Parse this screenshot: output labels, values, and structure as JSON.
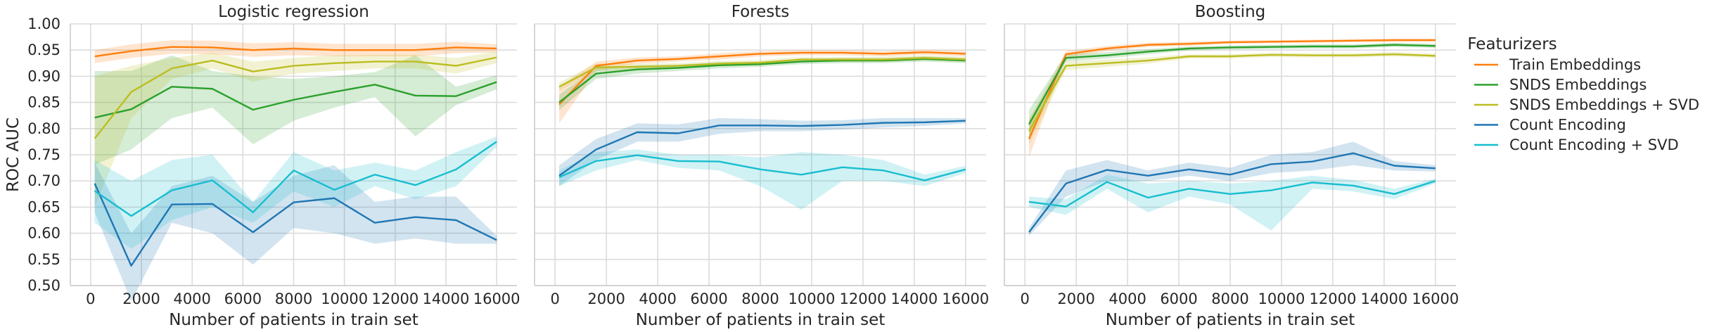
{
  "chart_data": [
    {
      "type": "line",
      "title": "Logistic regression",
      "xlabel": "Number of patients in train set",
      "ylabel": "ROC AUC",
      "xlim": [
        -800,
        16800
      ],
      "ylim": [
        0.5,
        1.0
      ],
      "x_ticks": [
        0,
        2000,
        4000,
        6000,
        8000,
        10000,
        12000,
        14000,
        16000
      ],
      "y_ticks": [
        0.5,
        0.55,
        0.6,
        0.65,
        0.7,
        0.75,
        0.8,
        0.85,
        0.9,
        0.95,
        1.0
      ],
      "grid": true,
      "x": [
        160,
        1600,
        3200,
        4800,
        6400,
        8000,
        9600,
        11200,
        12800,
        14400,
        16000
      ],
      "series": [
        {
          "name": "Train Embeddings",
          "color": "#ff7f0e",
          "values": [
            0.938,
            0.948,
            0.956,
            0.955,
            0.95,
            0.953,
            0.95,
            0.95,
            0.95,
            0.955,
            0.953
          ],
          "lower": [
            0.925,
            0.935,
            0.943,
            0.942,
            0.937,
            0.94,
            0.938,
            0.938,
            0.938,
            0.944,
            0.945
          ],
          "upper": [
            0.95,
            0.961,
            0.969,
            0.968,
            0.963,
            0.965,
            0.962,
            0.962,
            0.962,
            0.966,
            0.961
          ]
        },
        {
          "name": "SNDS Embeddings",
          "color": "#2ca02c",
          "values": [
            0.821,
            0.837,
            0.88,
            0.876,
            0.836,
            0.855,
            0.87,
            0.884,
            0.863,
            0.862,
            0.889
          ],
          "lower": [
            0.731,
            0.76,
            0.82,
            0.84,
            0.77,
            0.815,
            0.84,
            0.86,
            0.785,
            0.845,
            0.875
          ],
          "upper": [
            0.91,
            0.91,
            0.94,
            0.91,
            0.9,
            0.895,
            0.9,
            0.908,
            0.94,
            0.88,
            0.902
          ]
        },
        {
          "name": "SNDS Embeddings + SVD",
          "color": "#bcbd22",
          "values": [
            0.781,
            0.87,
            0.915,
            0.93,
            0.909,
            0.92,
            0.925,
            0.928,
            0.928,
            0.92,
            0.936
          ],
          "lower": [
            0.65,
            0.82,
            0.895,
            0.915,
            0.89,
            0.905,
            0.91,
            0.915,
            0.915,
            0.905,
            0.925
          ],
          "upper": [
            0.9,
            0.92,
            0.935,
            0.945,
            0.928,
            0.935,
            0.94,
            0.941,
            0.941,
            0.935,
            0.947
          ]
        },
        {
          "name": "Count Encoding",
          "color": "#1f77b4",
          "values": [
            0.695,
            0.538,
            0.655,
            0.656,
            0.602,
            0.659,
            0.667,
            0.62,
            0.631,
            0.625,
            0.587
          ],
          "lower": [
            0.64,
            0.47,
            0.62,
            0.6,
            0.54,
            0.61,
            0.6,
            0.58,
            0.59,
            0.58,
            0.58
          ],
          "upper": [
            0.735,
            0.6,
            0.69,
            0.71,
            0.66,
            0.71,
            0.73,
            0.66,
            0.67,
            0.67,
            0.595
          ]
        },
        {
          "name": "Count Encoding + SVD",
          "color": "#17becf",
          "values": [
            0.681,
            0.633,
            0.682,
            0.701,
            0.64,
            0.72,
            0.683,
            0.712,
            0.692,
            0.722,
            0.775
          ],
          "lower": [
            0.62,
            0.57,
            0.625,
            0.65,
            0.62,
            0.68,
            0.65,
            0.69,
            0.665,
            0.69,
            0.765
          ],
          "upper": [
            0.74,
            0.7,
            0.74,
            0.75,
            0.66,
            0.755,
            0.72,
            0.735,
            0.72,
            0.755,
            0.785
          ]
        }
      ]
    },
    {
      "type": "line",
      "title": "Forests",
      "xlabel": "Number of patients in train set",
      "xlim": [
        -800,
        16800
      ],
      "ylim": [
        0.5,
        1.0
      ],
      "x_ticks": [
        0,
        2000,
        4000,
        6000,
        8000,
        10000,
        12000,
        14000,
        16000
      ],
      "grid": true,
      "x": [
        160,
        1600,
        3200,
        4800,
        6400,
        8000,
        9600,
        11200,
        12800,
        14400,
        16000
      ],
      "series": [
        {
          "name": "Train Embeddings",
          "color": "#ff7f0e",
          "values": [
            0.846,
            0.92,
            0.93,
            0.933,
            0.938,
            0.943,
            0.945,
            0.945,
            0.943,
            0.946,
            0.943
          ],
          "lower": [
            0.81,
            0.91,
            0.924,
            0.928,
            0.932,
            0.938,
            0.94,
            0.94,
            0.938,
            0.941,
            0.938
          ],
          "upper": [
            0.88,
            0.928,
            0.936,
            0.938,
            0.944,
            0.948,
            0.95,
            0.95,
            0.948,
            0.951,
            0.948
          ]
        },
        {
          "name": "SNDS Embeddings",
          "color": "#2ca02c",
          "values": [
            0.85,
            0.905,
            0.913,
            0.916,
            0.921,
            0.923,
            0.928,
            0.93,
            0.93,
            0.933,
            0.93
          ],
          "lower": [
            0.835,
            0.895,
            0.905,
            0.91,
            0.915,
            0.918,
            0.923,
            0.925,
            0.925,
            0.928,
            0.925
          ],
          "upper": [
            0.865,
            0.915,
            0.921,
            0.922,
            0.927,
            0.928,
            0.933,
            0.935,
            0.935,
            0.938,
            0.935
          ]
        },
        {
          "name": "SNDS Embeddings + SVD",
          "color": "#bcbd22",
          "values": [
            0.88,
            0.917,
            0.918,
            0.92,
            0.924,
            0.926,
            0.932,
            0.932,
            0.932,
            0.935,
            0.932
          ],
          "lower": [
            0.872,
            0.91,
            0.912,
            0.915,
            0.919,
            0.921,
            0.927,
            0.927,
            0.927,
            0.93,
            0.927
          ],
          "upper": [
            0.888,
            0.924,
            0.924,
            0.925,
            0.929,
            0.931,
            0.937,
            0.937,
            0.937,
            0.94,
            0.937
          ]
        },
        {
          "name": "Count Encoding",
          "color": "#1f77b4",
          "values": [
            0.71,
            0.76,
            0.793,
            0.791,
            0.806,
            0.806,
            0.805,
            0.807,
            0.811,
            0.812,
            0.815
          ],
          "lower": [
            0.69,
            0.74,
            0.775,
            0.775,
            0.79,
            0.795,
            0.795,
            0.798,
            0.802,
            0.805,
            0.81
          ],
          "upper": [
            0.73,
            0.78,
            0.81,
            0.808,
            0.82,
            0.818,
            0.815,
            0.816,
            0.82,
            0.82,
            0.82
          ]
        },
        {
          "name": "Count Encoding + SVD",
          "color": "#17becf",
          "values": [
            0.707,
            0.738,
            0.749,
            0.738,
            0.737,
            0.722,
            0.712,
            0.726,
            0.72,
            0.701,
            0.722
          ],
          "lower": [
            0.69,
            0.72,
            0.74,
            0.725,
            0.72,
            0.69,
            0.645,
            0.7,
            0.7,
            0.69,
            0.715
          ],
          "upper": [
            0.72,
            0.755,
            0.76,
            0.75,
            0.75,
            0.745,
            0.755,
            0.75,
            0.74,
            0.712,
            0.729
          ]
        }
      ]
    },
    {
      "type": "line",
      "title": "Boosting",
      "xlabel": "Number of patients in train set",
      "xlim": [
        -800,
        16800
      ],
      "ylim": [
        0.5,
        1.0
      ],
      "x_ticks": [
        0,
        2000,
        4000,
        6000,
        8000,
        10000,
        12000,
        14000,
        16000
      ],
      "grid": true,
      "x": [
        160,
        1600,
        3200,
        4800,
        6400,
        8000,
        9600,
        11200,
        12800,
        14400,
        16000
      ],
      "series": [
        {
          "name": "Train Embeddings",
          "color": "#ff7f0e",
          "values": [
            0.78,
            0.942,
            0.953,
            0.96,
            0.962,
            0.965,
            0.966,
            0.967,
            0.968,
            0.969,
            0.969
          ],
          "lower": [
            0.745,
            0.936,
            0.948,
            0.956,
            0.958,
            0.962,
            0.963,
            0.964,
            0.965,
            0.966,
            0.966
          ],
          "upper": [
            0.815,
            0.948,
            0.958,
            0.964,
            0.966,
            0.968,
            0.969,
            0.97,
            0.971,
            0.972,
            0.972
          ]
        },
        {
          "name": "SNDS Embeddings",
          "color": "#2ca02c",
          "values": [
            0.808,
            0.935,
            0.94,
            0.947,
            0.953,
            0.955,
            0.956,
            0.957,
            0.957,
            0.96,
            0.958
          ],
          "lower": [
            0.78,
            0.928,
            0.934,
            0.942,
            0.949,
            0.951,
            0.952,
            0.953,
            0.953,
            0.956,
            0.954
          ],
          "upper": [
            0.836,
            0.942,
            0.946,
            0.952,
            0.957,
            0.959,
            0.96,
            0.961,
            0.961,
            0.964,
            0.962
          ]
        },
        {
          "name": "SNDS Embeddings + SVD",
          "color": "#bcbd22",
          "values": [
            0.795,
            0.92,
            0.925,
            0.93,
            0.938,
            0.938,
            0.941,
            0.94,
            0.94,
            0.942,
            0.939
          ],
          "lower": [
            0.77,
            0.912,
            0.918,
            0.924,
            0.934,
            0.934,
            0.937,
            0.936,
            0.936,
            0.938,
            0.935
          ],
          "upper": [
            0.82,
            0.928,
            0.932,
            0.936,
            0.942,
            0.942,
            0.945,
            0.944,
            0.944,
            0.946,
            0.943
          ]
        },
        {
          "name": "Count Encoding",
          "color": "#1f77b4",
          "values": [
            0.602,
            0.695,
            0.721,
            0.71,
            0.722,
            0.712,
            0.732,
            0.737,
            0.753,
            0.729,
            0.724
          ],
          "lower": [
            0.595,
            0.67,
            0.7,
            0.7,
            0.71,
            0.7,
            0.715,
            0.72,
            0.73,
            0.72,
            0.718
          ],
          "upper": [
            0.61,
            0.72,
            0.74,
            0.72,
            0.735,
            0.725,
            0.75,
            0.755,
            0.775,
            0.738,
            0.73
          ]
        },
        {
          "name": "Count Encoding + SVD",
          "color": "#17becf",
          "values": [
            0.66,
            0.651,
            0.698,
            0.668,
            0.685,
            0.675,
            0.682,
            0.697,
            0.691,
            0.675,
            0.7
          ],
          "lower": [
            0.65,
            0.635,
            0.685,
            0.64,
            0.67,
            0.655,
            0.605,
            0.685,
            0.68,
            0.665,
            0.695
          ],
          "upper": [
            0.67,
            0.665,
            0.712,
            0.695,
            0.7,
            0.695,
            0.7,
            0.71,
            0.702,
            0.685,
            0.705
          ]
        }
      ]
    }
  ],
  "legend": {
    "title": "Featurizers",
    "placement": "right",
    "entries": [
      {
        "label": "Train Embeddings",
        "color": "#ff7f0e"
      },
      {
        "label": "SNDS Embeddings",
        "color": "#2ca02c"
      },
      {
        "label": "SNDS Embeddings + SVD",
        "color": "#bcbd22"
      },
      {
        "label": "Count Encoding",
        "color": "#1f77b4"
      },
      {
        "label": "Count Encoding + SVD",
        "color": "#17becf"
      }
    ]
  }
}
